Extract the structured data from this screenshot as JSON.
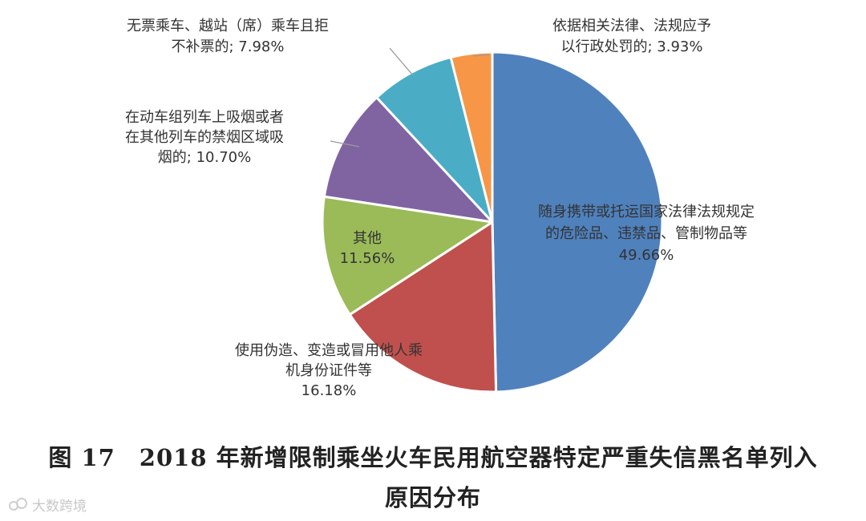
{
  "chart_data": {
    "type": "pie",
    "title": "",
    "slices": [
      {
        "label_lines": [
          "随身携带或托运国家法律法规规定",
          "的危险品、违禁品、管制物品等"
        ],
        "pct_text": "49.66%",
        "value": 49.66,
        "color": "#4f81bd"
      },
      {
        "label_lines": [
          "使用伪造、变造或冒用他人乘",
          "机身份证件等"
        ],
        "pct_text": "16.18%",
        "value": 16.18,
        "color": "#c0504d"
      },
      {
        "label_lines": [
          "其他"
        ],
        "pct_text": "11.56%",
        "value": 11.56,
        "color": "#9bbb59"
      },
      {
        "label_lines": [
          "在动车组列车上吸烟或者",
          "在其他列车的禁烟区域吸",
          "烟的; 10.70%"
        ],
        "pct_text": "",
        "value": 10.7,
        "color": "#8064a2"
      },
      {
        "label_lines": [
          "无票乘车、越站（席）乘车且拒",
          "不补票的; 7.98%"
        ],
        "pct_text": "",
        "value": 7.98,
        "color": "#4bacc6"
      },
      {
        "label_lines": [
          "依据相关法律、法规应予",
          "以行政处罚的; 3.93%"
        ],
        "pct_text": "",
        "value": 3.93,
        "color": "#f79646"
      }
    ]
  },
  "caption": {
    "line1": "图 17　2018 年新增限制乘坐火车民用航空器特定严重失信黑名单列入",
    "line2": "原因分布"
  },
  "watermark": {
    "text": "大数跨境"
  }
}
